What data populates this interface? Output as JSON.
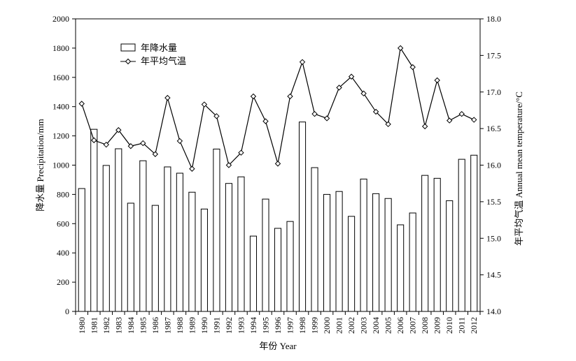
{
  "chart_data": {
    "type": "bar+line",
    "title": "",
    "xlabel": "年份 Year",
    "ylabel_left": "降水量 Precipitation/mm",
    "ylabel_right": "年平均气温  Annual mean temperature/°C",
    "categories": [
      "1980",
      "1981",
      "1982",
      "1983",
      "1984",
      "1985",
      "1986",
      "1987",
      "1988",
      "1989",
      "1990",
      "1991",
      "1992",
      "1993",
      "1994",
      "1995",
      "1996",
      "1997",
      "1998",
      "1999",
      "2000",
      "2001",
      "2002",
      "2003",
      "2004",
      "2005",
      "2006",
      "2007",
      "2008",
      "2009",
      "2010",
      "2011",
      "2012"
    ],
    "series": [
      {
        "name": "年降水量",
        "type": "bar",
        "axis": "left",
        "values": [
          840,
          1245,
          998,
          1112,
          740,
          1030,
          725,
          988,
          945,
          815,
          700,
          1110,
          875,
          920,
          515,
          768,
          568,
          615,
          1295,
          983,
          800,
          820,
          650,
          905,
          805,
          772,
          592,
          673,
          930,
          910,
          757,
          1040,
          1068
        ]
      },
      {
        "name": "年平均气温",
        "type": "line",
        "axis": "right",
        "values": [
          16.84,
          16.34,
          16.28,
          16.48,
          16.26,
          16.3,
          16.15,
          16.92,
          16.33,
          15.95,
          16.83,
          16.67,
          16.0,
          16.17,
          16.94,
          16.6,
          16.02,
          16.94,
          17.41,
          16.7,
          16.64,
          17.06,
          17.21,
          16.98,
          16.73,
          16.56,
          17.6,
          17.34,
          16.53,
          17.16,
          16.61,
          16.7,
          16.62
        ]
      }
    ],
    "ylim_left": [
      0,
      2000
    ],
    "yticks_left": [
      "0",
      "200",
      "400",
      "600",
      "800",
      "1000",
      "1200",
      "1400",
      "1600",
      "1800",
      "2000"
    ],
    "ylim_right": [
      14.0,
      18.0
    ],
    "yticks_right": [
      "14.0",
      "14.5",
      "15.0",
      "15.5",
      "16.0",
      "16.5",
      "17.0",
      "17.5",
      "18.0"
    ],
    "grid": false,
    "legend_position": "top-left",
    "colors": {
      "bar_fill": "#ffffff",
      "stroke": "#000000"
    }
  }
}
